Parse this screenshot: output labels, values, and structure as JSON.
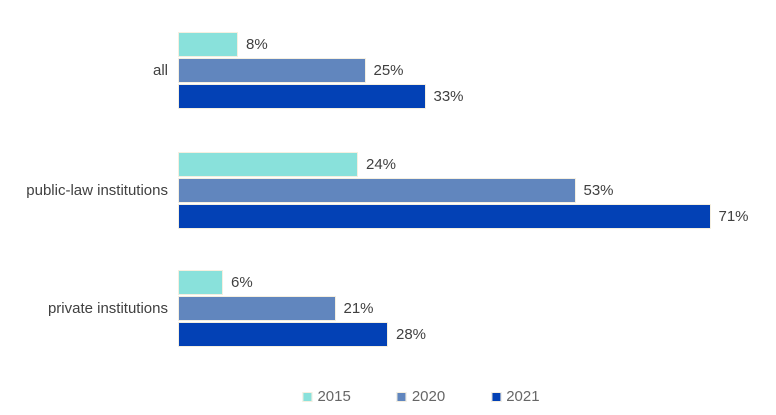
{
  "chart_data": {
    "type": "bar",
    "orientation": "horizontal",
    "title": "",
    "categories": [
      "all",
      "public-law institutions",
      "private institutions"
    ],
    "series": [
      {
        "name": "2015",
        "color": "#89e1db",
        "values": [
          8,
          24,
          6
        ]
      },
      {
        "name": "2020",
        "color": "#6186be",
        "values": [
          25,
          53,
          21
        ]
      },
      {
        "name": "2021",
        "color": "#0341b5",
        "values": [
          33,
          71,
          28
        ]
      }
    ],
    "value_suffix": "%",
    "data_labels": true,
    "data_label_color": "#404040",
    "legend_position": "bottom",
    "legend_text_color": "#666666",
    "bar_border_color": "#f5efe0",
    "axes_visible": false,
    "gridlines": false,
    "xlim": [
      0,
      75
    ],
    "background": "#ffffff"
  }
}
